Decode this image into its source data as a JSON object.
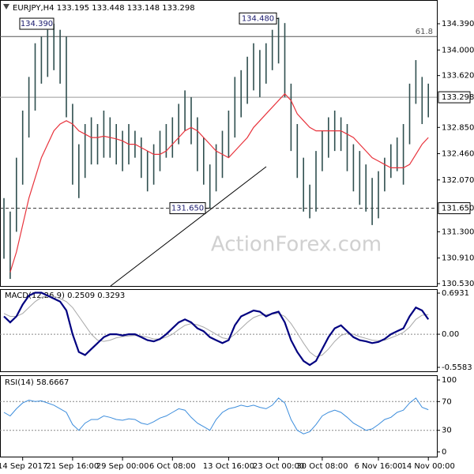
{
  "watermark": "ActionForex.com",
  "chart_data": [
    {
      "type": "hilo",
      "title": "EURJPY,H4  133.195 133.448 133.148 133.298",
      "color": "#2f4f4f",
      "high": [
        131.8,
        131.6,
        132.4,
        133.1,
        133.6,
        134.1,
        134.2,
        134.3,
        134.39,
        134.3,
        134.2,
        133.2,
        132.6,
        132.9,
        133.0,
        132.9,
        133.1,
        133.0,
        132.9,
        132.8,
        132.9,
        132.8,
        132.7,
        132.5,
        132.6,
        132.8,
        132.9,
        133.0,
        133.2,
        133.4,
        133.3,
        133.0,
        132.7,
        132.3,
        132.6,
        132.8,
        133.1,
        133.6,
        133.7,
        133.9,
        134.1,
        134.0,
        134.1,
        134.3,
        134.48,
        134.4,
        133.5,
        132.9,
        132.4,
        132.0,
        132.5,
        132.8,
        133.0,
        133.1,
        133.0,
        132.9,
        132.6,
        132.5,
        132.3,
        132.1,
        132.2,
        132.4,
        132.6,
        132.7,
        132.9,
        133.5,
        133.85,
        133.6,
        133.5
      ],
      "low": [
        130.9,
        130.6,
        131.3,
        132.0,
        132.7,
        133.1,
        133.5,
        133.6,
        133.7,
        133.5,
        133.0,
        132.0,
        131.8,
        132.1,
        132.3,
        132.3,
        132.4,
        132.4,
        132.3,
        132.2,
        132.3,
        132.4,
        132.1,
        131.9,
        132.0,
        132.2,
        132.4,
        132.4,
        132.6,
        132.8,
        132.6,
        132.2,
        132.0,
        131.65,
        131.9,
        132.1,
        132.4,
        132.7,
        133.0,
        133.2,
        133.4,
        133.3,
        133.5,
        133.7,
        133.8,
        133.3,
        132.5,
        132.1,
        131.6,
        131.5,
        131.6,
        132.2,
        132.4,
        132.5,
        132.5,
        132.2,
        131.9,
        131.7,
        131.6,
        131.4,
        131.5,
        131.9,
        132.1,
        132.2,
        132.0,
        132.6,
        133.2,
        132.9,
        133.0
      ],
      "ma": {
        "color": "#e8333c",
        "values": [
          null,
          130.7,
          131.0,
          131.4,
          131.8,
          132.1,
          132.4,
          132.6,
          132.8,
          132.9,
          132.95,
          132.9,
          132.8,
          132.75,
          132.7,
          132.7,
          132.72,
          132.7,
          132.68,
          132.65,
          132.6,
          132.6,
          132.55,
          132.5,
          132.45,
          132.45,
          132.5,
          132.6,
          132.7,
          132.8,
          132.85,
          132.8,
          132.7,
          132.6,
          132.5,
          132.45,
          132.4,
          132.5,
          132.6,
          132.7,
          132.85,
          132.95,
          133.05,
          133.15,
          133.25,
          133.35,
          133.25,
          133.05,
          132.95,
          132.85,
          132.8,
          132.8,
          132.8,
          132.8,
          132.8,
          132.75,
          132.7,
          132.6,
          132.5,
          132.4,
          132.35,
          132.3,
          132.25,
          132.25,
          132.25,
          132.3,
          132.45,
          132.6,
          132.7
        ]
      },
      "ylim": [
        130.495,
        134.719
      ],
      "yticks": [
        {
          "value": 134.39,
          "label": "134.390"
        },
        {
          "value": 134.0,
          "label": "134.000"
        },
        {
          "value": 133.62,
          "label": "133.620"
        },
        {
          "value": 132.85,
          "label": "132.850"
        },
        {
          "value": 132.46,
          "label": "132.460"
        },
        {
          "value": 132.07,
          "label": "132.070"
        },
        {
          "value": 131.3,
          "label": "131.300"
        },
        {
          "value": 130.91,
          "label": "130.910"
        },
        {
          "value": 130.53,
          "label": "130.530"
        }
      ],
      "levels": [
        {
          "value": 133.298,
          "label": "133.298",
          "style": "solid"
        },
        {
          "value": 131.65,
          "label": "131.650",
          "style": "dashed"
        }
      ],
      "fib": {
        "value": 134.2,
        "label": "61.8"
      },
      "annotations": [
        {
          "value": 134.39,
          "label": "134.390"
        },
        {
          "value": 134.48,
          "label": "134.480"
        },
        {
          "value": 131.65,
          "label": "131.650"
        }
      ],
      "xticks": [
        {
          "value": 3,
          "label": "14 Sep 2017"
        },
        {
          "value": 11,
          "label": "21 Sep 16:00"
        },
        {
          "value": 19,
          "label": "29 Sep 00:00"
        },
        {
          "value": 27,
          "label": "6 Oct 08:00"
        },
        {
          "value": 36,
          "label": "13 Oct 16:00"
        },
        {
          "value": 44,
          "label": "23 Oct 00:00"
        },
        {
          "value": 51,
          "label": "30 Oct 08:00"
        },
        {
          "value": 60,
          "label": "6 Nov 16:00"
        },
        {
          "value": 68,
          "label": "14 Nov 00:00"
        }
      ]
    },
    {
      "type": "line",
      "title": "MACD(12,26,9) 0.2509 0.3293",
      "series": [
        {
          "color": "#000080",
          "width": 2.2,
          "values": [
            0.3,
            0.2,
            0.3,
            0.5,
            0.65,
            0.7,
            0.7,
            0.65,
            0.6,
            0.55,
            0.4,
            0.0,
            -0.3,
            -0.35,
            -0.25,
            -0.15,
            -0.05,
            0.0,
            0.0,
            -0.02,
            0.0,
            0.0,
            -0.05,
            -0.1,
            -0.12,
            -0.08,
            0.0,
            0.1,
            0.2,
            0.25,
            0.2,
            0.1,
            0.05,
            -0.05,
            -0.1,
            -0.15,
            -0.1,
            0.15,
            0.3,
            0.35,
            0.4,
            0.38,
            0.3,
            0.35,
            0.38,
            0.2,
            -0.1,
            -0.3,
            -0.45,
            -0.52,
            -0.45,
            -0.25,
            -0.05,
            0.1,
            0.15,
            0.05,
            -0.05,
            -0.1,
            -0.12,
            -0.15,
            -0.13,
            -0.08,
            0.0,
            0.05,
            0.1,
            0.3,
            0.45,
            0.4,
            0.2509
          ]
        },
        {
          "color": "#a8a8a8",
          "width": 1,
          "values": [
            0.35,
            0.3,
            0.3,
            0.35,
            0.45,
            0.55,
            0.62,
            0.65,
            0.64,
            0.6,
            0.55,
            0.45,
            0.3,
            0.15,
            0.0,
            -0.1,
            -0.12,
            -0.1,
            -0.06,
            -0.04,
            -0.03,
            -0.02,
            -0.03,
            -0.05,
            -0.08,
            -0.08,
            -0.05,
            0.0,
            0.08,
            0.15,
            0.18,
            0.16,
            0.12,
            0.06,
            0.0,
            -0.06,
            -0.08,
            0.0,
            0.1,
            0.2,
            0.28,
            0.32,
            0.33,
            0.34,
            0.35,
            0.3,
            0.18,
            0.02,
            -0.15,
            -0.3,
            -0.38,
            -0.35,
            -0.25,
            -0.12,
            -0.02,
            0.02,
            0.0,
            -0.04,
            -0.07,
            -0.1,
            -0.11,
            -0.1,
            -0.06,
            -0.02,
            0.03,
            0.12,
            0.25,
            0.32,
            0.3293
          ]
        }
      ],
      "ylim": [
        -0.625,
        0.76
      ],
      "yticks": [
        0.6931,
        {
          "value": 0,
          "label": "0.00"
        },
        -0.5583
      ],
      "levels": [
        0
      ]
    },
    {
      "type": "line",
      "title": "RSI(14) 58.6667",
      "series": [
        {
          "color": "#3c8ddc",
          "width": 1,
          "values": [
            55,
            50,
            60,
            68,
            72,
            70,
            71,
            68,
            65,
            60,
            55,
            38,
            30,
            40,
            45,
            45,
            50,
            48,
            45,
            44,
            46,
            45,
            40,
            38,
            42,
            47,
            50,
            55,
            60,
            58,
            48,
            40,
            35,
            30,
            45,
            55,
            60,
            62,
            65,
            63,
            65,
            62,
            60,
            65,
            75,
            68,
            45,
            30,
            25,
            28,
            38,
            50,
            55,
            58,
            55,
            48,
            40,
            35,
            30,
            32,
            38,
            45,
            48,
            55,
            58,
            68,
            75,
            62,
            58.6667
          ]
        }
      ],
      "ylim": [
        -6.6,
        106.6
      ],
      "yticks": [
        100,
        70,
        30,
        0
      ],
      "levels": [
        70,
        30
      ]
    }
  ]
}
